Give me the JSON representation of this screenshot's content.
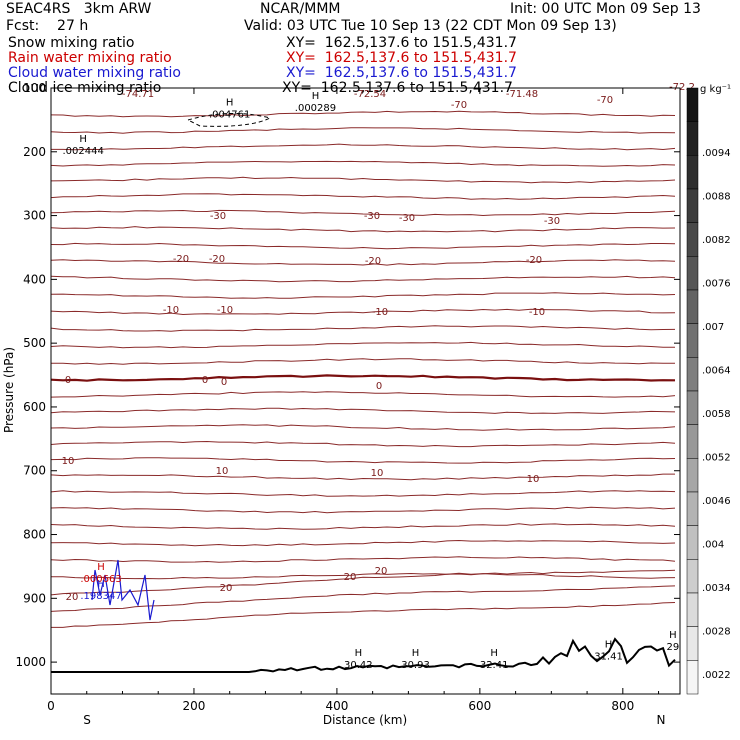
{
  "header": {
    "model": "SEAC4RS   3km ARW",
    "center": "NCAR/MMM",
    "init": "Init: 00 UTC Mon 09 Sep 13",
    "fcst": "Fcst:    27 h",
    "valid": "Valid: 03 UTC Tue 10 Sep 13 (22 CDT Mon 09 Sep 13)",
    "fields": [
      {
        "name": "Snow mixing ratio",
        "xy": "XY=  162.5,137.6 to 151.5,431.7",
        "color": "#000000"
      },
      {
        "name": "Rain water mixing ratio",
        "xy": "XY=  162.5,137.6 to 151.5,431.7",
        "color": "#cc0000"
      },
      {
        "name": "Cloud water mixing ratio",
        "xy": "XY=  162.5,137.6 to 151.5,431.7",
        "color": "#1a1ad0"
      },
      {
        "name": "Cloud ice mixing ratio",
        "xy": "XY=  162.5,137.6 to 151.5,431.7",
        "color": "#000000"
      }
    ]
  },
  "colorbar": {
    "unit": "g kg⁻¹",
    "labels": [
      ".0022",
      ".0028",
      ".0034",
      ".004",
      ".0046",
      ".0052",
      ".0058",
      ".0064",
      ".007",
      ".0076",
      ".0082",
      ".0088",
      ".0094"
    ]
  },
  "chart_data": {
    "type": "contour",
    "xlabel": "Distance (km)",
    "ylabel": "Pressure (hPa)",
    "xlim": [
      0,
      880
    ],
    "ylim": [
      1050,
      100
    ],
    "xticks": [
      0,
      200,
      400,
      600,
      800
    ],
    "yticks": [
      100,
      200,
      300,
      400,
      500,
      600,
      700,
      800,
      900,
      1000
    ],
    "x_end_labels": {
      "left": "S",
      "right": "N"
    },
    "temperature_contour_labels": [
      "-74.71",
      "-72.54",
      "-70",
      "-71.48",
      "-70",
      "-72.2",
      "-30",
      "-30",
      "-30",
      "-30",
      "-20",
      "-20",
      "-20",
      "-20",
      "-10",
      "-10",
      "-10",
      "-10",
      "0",
      "0",
      "0",
      "0",
      "10",
      "10",
      "10",
      "10",
      "20",
      "20",
      "20",
      "20"
    ],
    "highs": [
      {
        "label": "H",
        "value": ".004761",
        "x": 250,
        "p": 140
      },
      {
        "label": "H",
        "value": ".000289",
        "x": 370,
        "p": 130
      },
      {
        "label": "H",
        "value": ".002444",
        "x": 45,
        "p": 197
      },
      {
        "label": "H",
        "value": ".000663",
        "x": 70,
        "p": 868,
        "color": "#cc0000"
      },
      {
        "label": "H",
        "value": ".198347",
        "x": 70,
        "p": 895,
        "color": "#1a1ad0"
      },
      {
        "label": "H",
        "value": "30.42",
        "x": 430,
        "p": 1003
      },
      {
        "label": "H",
        "value": "30.93",
        "x": 510,
        "p": 1003
      },
      {
        "label": "H",
        "value": "32.41",
        "x": 620,
        "p": 1003
      },
      {
        "label": "H",
        "value": "31.41",
        "x": 780,
        "p": 990
      },
      {
        "label": "H",
        "value": "29",
        "x": 870,
        "p": 975
      }
    ]
  }
}
